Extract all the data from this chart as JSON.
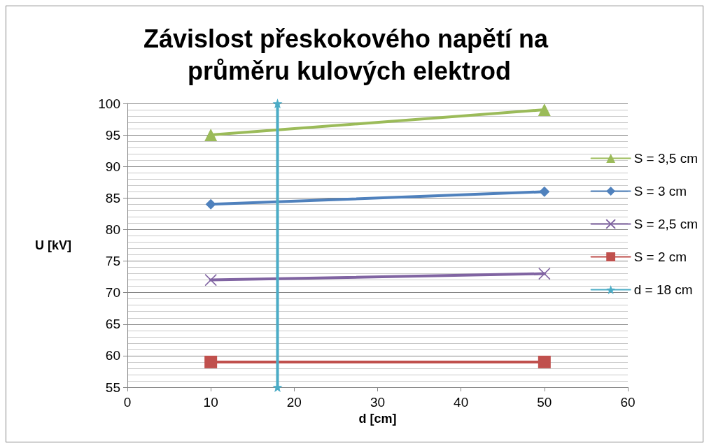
{
  "chart_data": {
    "type": "line",
    "title": "Závislost přeskokového napětí na průměru kulových elektrod",
    "xlabel": "d [cm]",
    "ylabel": "U [kV]",
    "xlim": [
      0,
      60
    ],
    "xticks": [
      0,
      10,
      20,
      30,
      40,
      50,
      60
    ],
    "ylim": [
      55,
      100
    ],
    "yticks": [
      55,
      60,
      65,
      70,
      75,
      80,
      85,
      90,
      95,
      100
    ],
    "grid": "y",
    "legend": "right",
    "series": [
      {
        "name": "S = 3,5 cm",
        "color": "#9bbb59",
        "marker": "triangle",
        "x": [
          10,
          50
        ],
        "values": [
          95,
          99
        ]
      },
      {
        "name": "S = 3 cm",
        "color": "#4f81bd",
        "marker": "diamond",
        "x": [
          10,
          50
        ],
        "values": [
          84,
          86
        ]
      },
      {
        "name": "S = 2,5 cm",
        "color": "#8064a2",
        "marker": "cross",
        "x": [
          10,
          50
        ],
        "values": [
          72,
          73
        ]
      },
      {
        "name": "S = 2 cm",
        "color": "#c0504d",
        "marker": "square",
        "x": [
          10,
          50
        ],
        "values": [
          59,
          59
        ]
      },
      {
        "name": "d = 18 cm",
        "color": "#4bacc6",
        "marker": "star",
        "x": [
          18,
          18
        ],
        "values": [
          55,
          100
        ]
      }
    ]
  }
}
